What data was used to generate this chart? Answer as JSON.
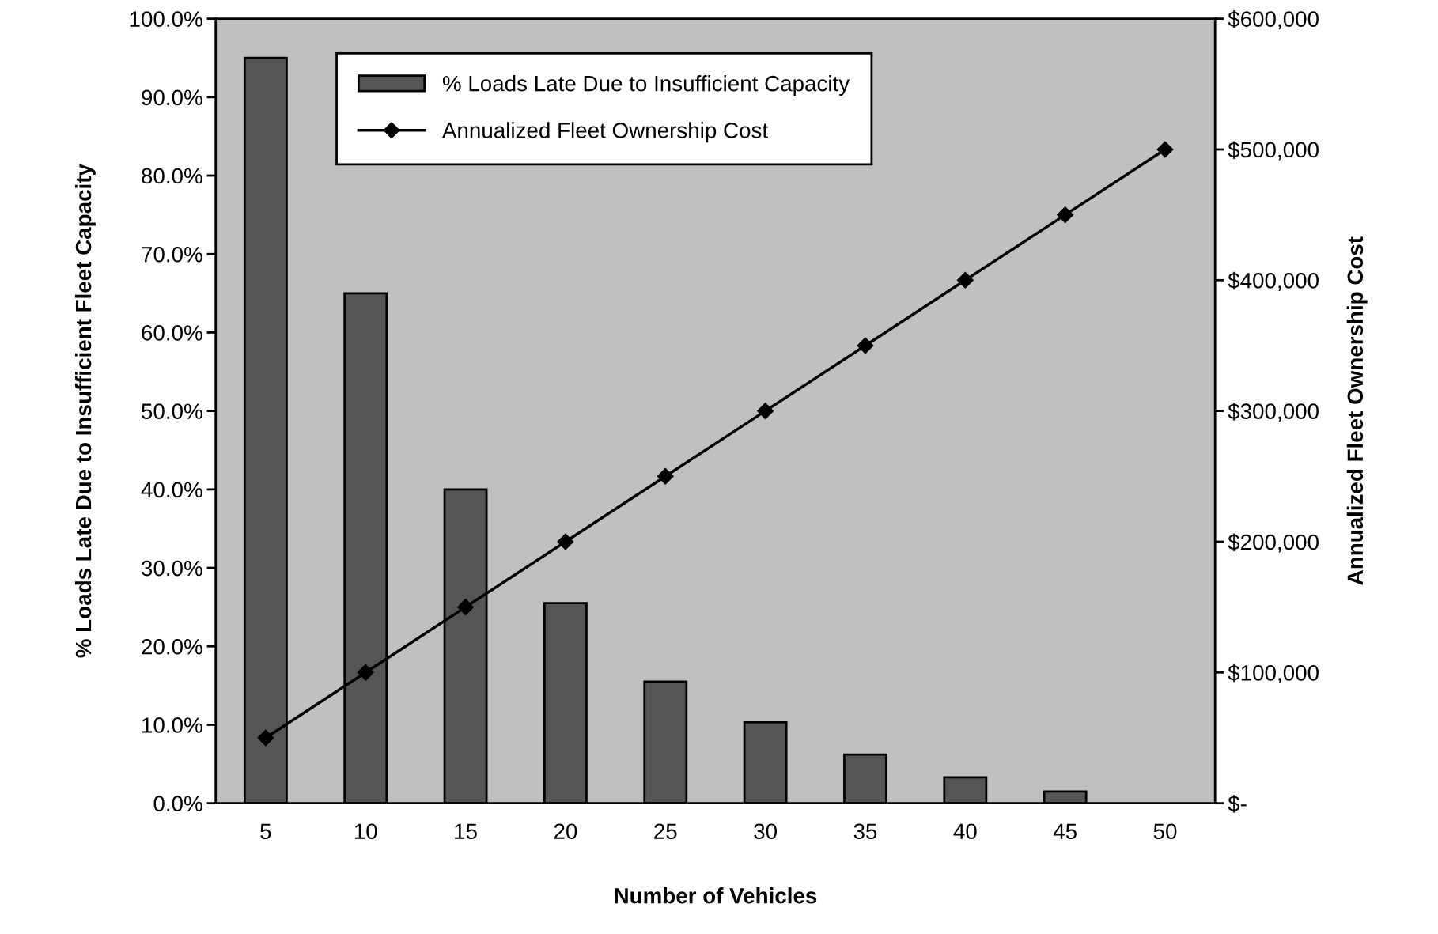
{
  "chart_data": {
    "type": "bar",
    "xlabel": "Number of Vehicles",
    "ylabel": "% Loads Late Due to Insufficient Fleet Capacity",
    "y2label": "Annualized Fleet Ownership Cost",
    "categories": [
      "5",
      "10",
      "15",
      "20",
      "25",
      "30",
      "35",
      "40",
      "45",
      "50"
    ],
    "series": [
      {
        "name": "% Loads Late Due to Insufficient Capacity",
        "color": "#555555",
        "values": [
          95,
          65,
          40,
          25.5,
          15.5,
          10.3,
          6.2,
          3.3,
          1.5,
          null
        ]
      },
      {
        "name": "Annualized Fleet Ownership Cost",
        "type": "line",
        "axis": "y2",
        "color": "#000000",
        "marker": "diamond",
        "values": [
          50000,
          100000,
          150000,
          200000,
          250000,
          300000,
          350000,
          400000,
          450000,
          500000
        ]
      }
    ],
    "ylim": [
      0,
      100
    ],
    "yticks": [
      {
        "value": 0,
        "label": "0.0%"
      },
      {
        "value": 10,
        "label": "10.0%"
      },
      {
        "value": 20,
        "label": "20.0%"
      },
      {
        "value": 30,
        "label": "30.0%"
      },
      {
        "value": 40,
        "label": "40.0%"
      },
      {
        "value": 50,
        "label": "50.0%"
      },
      {
        "value": 60,
        "label": "60.0%"
      },
      {
        "value": 70,
        "label": "70.0%"
      },
      {
        "value": 80,
        "label": "80.0%"
      },
      {
        "value": 90,
        "label": "90.0%"
      },
      {
        "value": 100,
        "label": "100.0%"
      }
    ],
    "y2lim": [
      0,
      600000
    ],
    "y2ticks": [
      {
        "value": 0,
        "label": "$-"
      },
      {
        "value": 100000,
        "label": "$100,000"
      },
      {
        "value": 200000,
        "label": "$200,000"
      },
      {
        "value": 300000,
        "label": "$300,000"
      },
      {
        "value": 400000,
        "label": "$400,000"
      },
      {
        "value": 500000,
        "label": "$500,000"
      },
      {
        "value": 600000,
        "label": "$600,000"
      }
    ],
    "legend": "top left",
    "grid": false
  }
}
